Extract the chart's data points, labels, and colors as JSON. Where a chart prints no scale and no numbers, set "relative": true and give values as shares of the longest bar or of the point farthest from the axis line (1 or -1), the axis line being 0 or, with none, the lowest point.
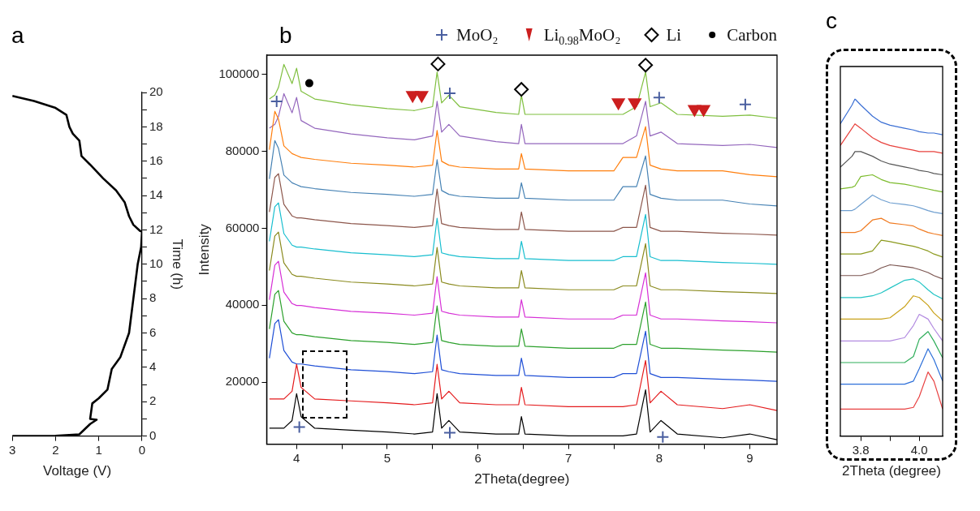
{
  "chart_data": [
    {
      "type": "line",
      "title": "a",
      "xlabel": "Voltage (V)",
      "y2label": "Time (h)",
      "xlim": [
        3,
        0
      ],
      "xticks": [
        3,
        2,
        1,
        0
      ],
      "y2lim": [
        0,
        20
      ],
      "y2ticks": [
        0,
        {
          "value": 1,
          "label": null
        },
        2,
        {
          "value": 3,
          "label": null
        },
        4,
        {
          "value": 5,
          "label": null
        },
        6,
        {
          "value": 7,
          "label": null
        },
        8,
        {
          "value": 9,
          "label": null
        },
        10,
        {
          "value": 11,
          "label": null
        },
        12,
        {
          "value": 13,
          "label": null
        },
        14,
        {
          "value": 15,
          "label": null
        },
        16,
        {
          "value": 17,
          "label": null
        },
        18,
        {
          "value": 19,
          "label": null
        },
        20
      ],
      "grid": false,
      "marker": "none",
      "series": [
        {
          "color": "#000000",
          "axis": "y2",
          "x": [
            3.0,
            2.5,
            2.0,
            1.75,
            1.68,
            1.6,
            1.45,
            1.4,
            1.2,
            0.9,
            0.6,
            0.4,
            0.3,
            0.2,
            0.05,
            0,
            0.02,
            0.1,
            0.2,
            0.3,
            0.5,
            0.7,
            0.8,
            1.0,
            1.15,
            1.2,
            1.05,
            1.2,
            1.45,
            2.0,
            3.0
          ],
          "values": [
            19.8,
            19.5,
            19.1,
            18.7,
            18.0,
            17.6,
            17.2,
            16.3,
            15.8,
            15.0,
            14.3,
            13.6,
            12.8,
            12.3,
            11.95,
            11.9,
            11,
            10,
            8,
            6,
            4.6,
            3.9,
            2.7,
            2.2,
            1.9,
            1.0,
            0.95,
            0.7,
            0.1,
            0.02,
            0
          ]
        }
      ]
    },
    {
      "type": "line",
      "title": "b",
      "xlabel": "2Theta(degree)",
      "ylabel": "Intensity",
      "xlim": [
        3.67,
        9.3
      ],
      "xticks": [
        4,
        {
          "value": 4.5,
          "label": null
        },
        5,
        {
          "value": 5.5,
          "label": null
        },
        6,
        {
          "value": 6.5,
          "label": null
        },
        7,
        {
          "value": 7.5,
          "label": null
        },
        8,
        {
          "value": 8.5,
          "label": null
        },
        9
      ],
      "ylim": [
        3850,
        105000
      ],
      "yticks": [
        20000,
        40000,
        60000,
        80000,
        100000
      ],
      "grid": false,
      "marker": "none",
      "legend": "top right",
      "x": [
        3.7,
        3.76,
        3.8,
        3.86,
        3.95,
        4.0,
        4.05,
        4.2,
        4.6,
        5.0,
        5.3,
        5.5,
        5.55,
        5.6,
        5.68,
        5.8,
        6.2,
        6.45,
        6.48,
        6.52,
        7.0,
        7.5,
        7.6,
        7.75,
        7.85,
        7.9,
        8.02,
        8.2,
        8.7,
        9.0,
        9.3
      ],
      "series": [
        {
          "color": "#000000",
          "values": [
            8000,
            8000,
            8000,
            8000,
            10000,
            17000,
            11000,
            8000,
            7500,
            7000,
            6500,
            7000,
            17000,
            8000,
            10000,
            7000,
            6500,
            6500,
            11000,
            6500,
            6000,
            6000,
            6000,
            6500,
            18000,
            7000,
            10000,
            6500,
            5500,
            6500,
            5000
          ]
        },
        {
          "color": "#e41a1c",
          "values": [
            15600,
            15600,
            15600,
            15600,
            17600,
            24600,
            18600,
            15600,
            15100,
            14600,
            14100,
            14600,
            24600,
            15600,
            17600,
            14600,
            14100,
            14100,
            18600,
            14100,
            13600,
            13600,
            13600,
            14100,
            25600,
            14600,
            17600,
            14100,
            13100,
            14100,
            12600
          ]
        },
        {
          "color": "#1f4fd6",
          "values": [
            26200,
            35200,
            36200,
            28200,
            25200,
            24700,
            24700,
            24200,
            23200,
            22700,
            22200,
            22700,
            32200,
            23200,
            22700,
            22200,
            21700,
            21700,
            26200,
            21700,
            21200,
            21200,
            22200,
            22200,
            33200,
            22200,
            21200,
            21200,
            20700,
            20500,
            20200
          ]
        },
        {
          "color": "#2ca02c",
          "values": [
            33800,
            42800,
            43800,
            35800,
            32800,
            32300,
            32300,
            31800,
            30800,
            30300,
            29800,
            30300,
            39800,
            30800,
            30300,
            29800,
            29300,
            29300,
            33800,
            29300,
            28800,
            28800,
            29800,
            29800,
            40800,
            29800,
            28800,
            28800,
            28300,
            28100,
            27800
          ]
        },
        {
          "color": "#d62fd6",
          "values": [
            41400,
            50400,
            51400,
            43400,
            40400,
            39900,
            39900,
            39400,
            38400,
            37900,
            37400,
            37900,
            47400,
            38400,
            37900,
            37400,
            36900,
            36900,
            41400,
            36900,
            36400,
            36400,
            37400,
            37400,
            48400,
            37400,
            36400,
            36400,
            35900,
            35700,
            35400
          ]
        },
        {
          "color": "#8a8a1e",
          "values": [
            49000,
            58000,
            59000,
            51000,
            48000,
            47500,
            47500,
            47000,
            46000,
            45500,
            45000,
            45500,
            55000,
            46000,
            45500,
            45000,
            44500,
            44500,
            49000,
            44500,
            44000,
            44000,
            45000,
            45000,
            56000,
            45000,
            44000,
            44000,
            43500,
            43300,
            43000
          ]
        },
        {
          "color": "#17becf",
          "values": [
            56600,
            65600,
            66600,
            58600,
            55600,
            55100,
            55100,
            54600,
            53600,
            53100,
            52600,
            53100,
            62600,
            53600,
            53100,
            52600,
            52100,
            52100,
            56600,
            52100,
            51600,
            51600,
            52600,
            52600,
            63600,
            52600,
            51600,
            51600,
            51100,
            50900,
            50600
          ]
        },
        {
          "color": "#8c564b",
          "values": [
            64200,
            73200,
            74200,
            66200,
            63200,
            62700,
            62700,
            62200,
            61200,
            60700,
            60200,
            60700,
            70200,
            61200,
            60700,
            60200,
            59700,
            59700,
            64200,
            59700,
            59200,
            59200,
            60200,
            60200,
            71200,
            60200,
            59200,
            59200,
            58700,
            58500,
            58200
          ]
        },
        {
          "color": "#4682b4",
          "values": [
            72800,
            82800,
            80800,
            73800,
            71800,
            71300,
            70800,
            70300,
            69300,
            68800,
            68300,
            68800,
            77800,
            69800,
            68800,
            68300,
            67800,
            67800,
            71800,
            67800,
            67300,
            67300,
            70800,
            70800,
            78800,
            68800,
            67800,
            67300,
            67300,
            66300,
            65800
          ]
        },
        {
          "color": "#ff7f0e",
          "values": [
            80400,
            90400,
            88400,
            81400,
            79400,
            78900,
            78400,
            77900,
            76900,
            76400,
            75900,
            76400,
            85400,
            77400,
            76400,
            75900,
            75400,
            75400,
            79400,
            75400,
            74900,
            74900,
            78400,
            78400,
            86400,
            76400,
            75400,
            74900,
            74900,
            73900,
            73400
          ]
        },
        {
          "color": "#9467bd",
          "values": [
            86000,
            87000,
            89000,
            95000,
            90000,
            94000,
            88000,
            86000,
            84500,
            83500,
            83000,
            84000,
            93000,
            85000,
            87000,
            84000,
            82500,
            82000,
            87000,
            82000,
            82000,
            82000,
            82000,
            84000,
            93000,
            84000,
            85000,
            82000,
            81500,
            81800,
            81000
          ]
        },
        {
          "color": "#7fbf3f",
          "values": [
            93600,
            94600,
            96600,
            102600,
            97600,
            101600,
            95600,
            93600,
            92100,
            91100,
            90600,
            91600,
            100600,
            92600,
            94600,
            91600,
            90100,
            89600,
            94600,
            89600,
            89600,
            89600,
            89600,
            91600,
            100600,
            91600,
            92600,
            89600,
            89100,
            89400,
            88600
          ]
        },
        {
          "type": "scatter",
          "name": "MoO₂",
          "color": "#4a5fa0",
          "marker": "cross",
          "x": [
            3.78,
            5.69,
            8.0,
            8.95,
            4.03,
            5.69,
            8.04
          ],
          "values": [
            93000,
            95100,
            94000,
            92200,
            8300,
            6800,
            5700
          ]
        },
        {
          "type": "scatter",
          "name": "Li$_{0.98}$MoO₂",
          "color": "#cc1f1f",
          "marker": "triangle",
          "x": [
            5.28,
            5.38,
            7.55,
            7.73,
            8.39,
            8.49
          ],
          "values": [
            94600,
            94600,
            92700,
            92700,
            91000,
            91000
          ]
        },
        {
          "type": "scatter",
          "name": "Li",
          "color": "#000000",
          "marker": "diamond",
          "x": [
            5.56,
            6.48,
            7.85
          ],
          "values": [
            102700,
            96100,
            102400
          ]
        },
        {
          "type": "scatter",
          "name": "Carbon",
          "color": "#000000",
          "marker": "circle",
          "x": [
            4.14
          ],
          "values": [
            97700
          ]
        }
      ]
    },
    {
      "type": "line",
      "title": "c",
      "xlabel": "2Theta (degree)",
      "relative": true,
      "xlim": [
        3.73,
        4.08
      ],
      "xticks": [
        3.8,
        {
          "value": 3.9,
          "label": null
        },
        {
          "value": 4,
          "label": "4.0"
        }
      ],
      "grid": false,
      "marker": "none",
      "x": [
        3.73,
        3.77,
        3.78,
        3.8,
        3.84,
        3.87,
        3.9,
        3.95,
        3.98,
        4.0,
        4.03,
        4.05,
        4.08
      ],
      "series": [
        {
          "color": "#3b6fd4",
          "values": [
            0.926,
            0.982,
            1,
            0.982,
            0.949,
            0.931,
            0.922,
            0.913,
            0.908,
            0.903,
            0.899,
            0.899,
            0.894
          ]
        },
        {
          "color": "#e8413c",
          "values": [
            0.862,
            0.913,
            0.926,
            0.913,
            0.885,
            0.871,
            0.862,
            0.853,
            0.848,
            0.844,
            0.844,
            0.844,
            0.839
          ]
        },
        {
          "color": "#555555",
          "values": [
            0.798,
            0.83,
            0.844,
            0.844,
            0.83,
            0.816,
            0.807,
            0.798,
            0.793,
            0.788,
            0.784,
            0.779,
            0.775
          ]
        },
        {
          "color": "#7cbb2c",
          "values": [
            0.733,
            0.738,
            0.742,
            0.77,
            0.775,
            0.761,
            0.752,
            0.747,
            0.742,
            0.738,
            0.733,
            0.729,
            0.724
          ]
        },
        {
          "color": "#6f9fd0",
          "values": [
            0.669,
            0.669,
            0.673,
            0.687,
            0.715,
            0.701,
            0.692,
            0.687,
            0.683,
            0.678,
            0.669,
            0.664,
            0.66
          ]
        },
        {
          "color": "#f07b22",
          "values": [
            0.604,
            0.604,
            0.604,
            0.609,
            0.641,
            0.646,
            0.632,
            0.627,
            0.623,
            0.614,
            0.604,
            0.6,
            0.595
          ]
        },
        {
          "color": "#8c9a1e",
          "values": [
            0.54,
            0.54,
            0.54,
            0.54,
            0.549,
            0.581,
            0.577,
            0.568,
            0.563,
            0.558,
            0.549,
            0.54,
            0.531
          ]
        },
        {
          "color": "#7b5550",
          "values": [
            0.476,
            0.476,
            0.476,
            0.476,
            0.485,
            0.499,
            0.508,
            0.503,
            0.499,
            0.494,
            0.485,
            0.476,
            0.466
          ]
        },
        {
          "color": "#22c4c4",
          "values": [
            0.411,
            0.411,
            0.411,
            0.411,
            0.416,
            0.425,
            0.439,
            0.462,
            0.466,
            0.457,
            0.434,
            0.42,
            0.407
          ]
        },
        {
          "color": "#c9a21a",
          "values": [
            0.347,
            0.347,
            0.347,
            0.347,
            0.347,
            0.347,
            0.351,
            0.384,
            0.416,
            0.411,
            0.388,
            0.365,
            0.342
          ]
        },
        {
          "color": "#b28ae0",
          "values": [
            0.282,
            0.282,
            0.282,
            0.282,
            0.282,
            0.282,
            0.282,
            0.292,
            0.328,
            0.361,
            0.347,
            0.319,
            0.282
          ]
        },
        {
          "color": "#2fae5a",
          "values": [
            0.218,
            0.218,
            0.218,
            0.218,
            0.218,
            0.218,
            0.218,
            0.218,
            0.236,
            0.287,
            0.31,
            0.282,
            0.232
          ]
        },
        {
          "color": "#2c6fd9",
          "values": [
            0.154,
            0.154,
            0.154,
            0.154,
            0.154,
            0.154,
            0.154,
            0.154,
            0.163,
            0.2,
            0.259,
            0.227,
            0.163
          ]
        },
        {
          "color": "#e84040",
          "values": [
            0.08,
            0.08,
            0.08,
            0.08,
            0.08,
            0.08,
            0.08,
            0.08,
            0.085,
            0.117,
            0.19,
            0.163,
            0.08
          ]
        }
      ]
    }
  ]
}
